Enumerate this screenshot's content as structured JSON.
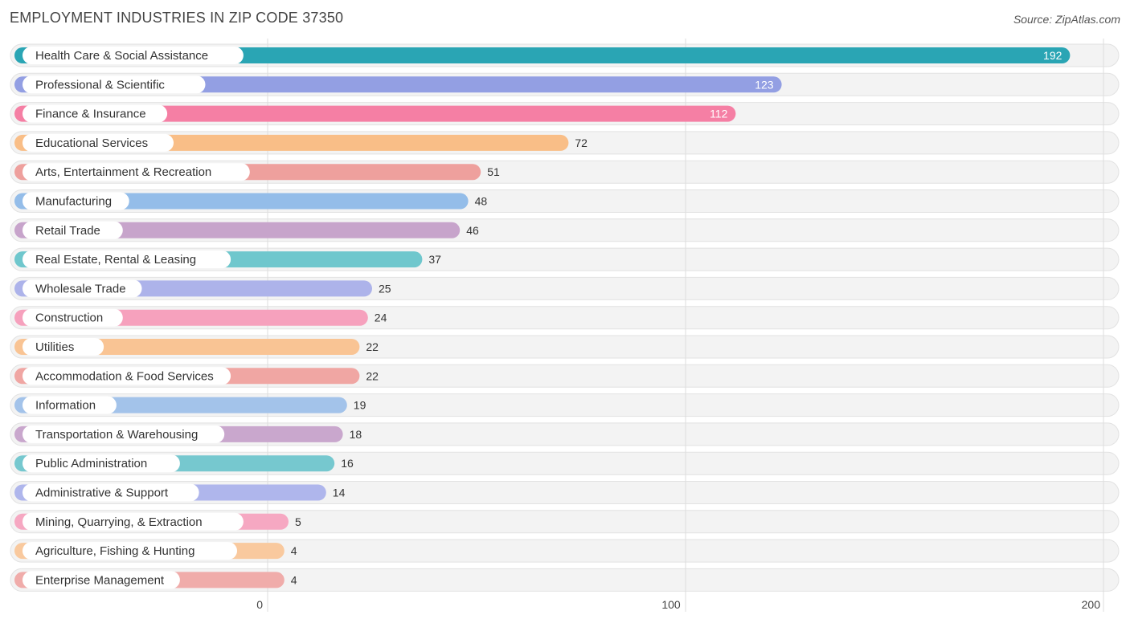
{
  "header": {
    "title": "EMPLOYMENT INDUSTRIES IN ZIP CODE 37350",
    "source": "Source: ZipAtlas.com"
  },
  "chart_data": {
    "type": "bar",
    "orientation": "horizontal",
    "title": "EMPLOYMENT INDUSTRIES IN ZIP CODE 37350",
    "xlabel": "",
    "ylabel": "",
    "xlim": [
      0,
      200
    ],
    "xticks": [
      0,
      100,
      200
    ],
    "grid": true,
    "categories": [
      "Health Care & Social Assistance",
      "Professional & Scientific",
      "Finance & Insurance",
      "Educational Services",
      "Arts, Entertainment & Recreation",
      "Manufacturing",
      "Retail Trade",
      "Real Estate, Rental & Leasing",
      "Wholesale Trade",
      "Construction",
      "Utilities",
      "Accommodation & Food Services",
      "Information",
      "Transportation & Warehousing",
      "Public Administration",
      "Administrative & Support",
      "Mining, Quarrying, & Extraction",
      "Agriculture, Fishing & Hunting",
      "Enterprise Management"
    ],
    "values": [
      192,
      123,
      112,
      72,
      51,
      48,
      46,
      37,
      25,
      24,
      22,
      22,
      19,
      18,
      16,
      14,
      5,
      4,
      4
    ],
    "colors": [
      "#2aa5b4",
      "#939fe3",
      "#f57fa4",
      "#f9be87",
      "#eea09d",
      "#94bde9",
      "#c7a4cb",
      "#6fc7cd",
      "#adb3ea",
      "#f6a1bd",
      "#f9c494",
      "#f0a6a3",
      "#a3c3ea",
      "#c9a7cd",
      "#76c8cf",
      "#afb6ec",
      "#f6a8c2",
      "#f9c99e",
      "#f0acaa"
    ]
  }
}
